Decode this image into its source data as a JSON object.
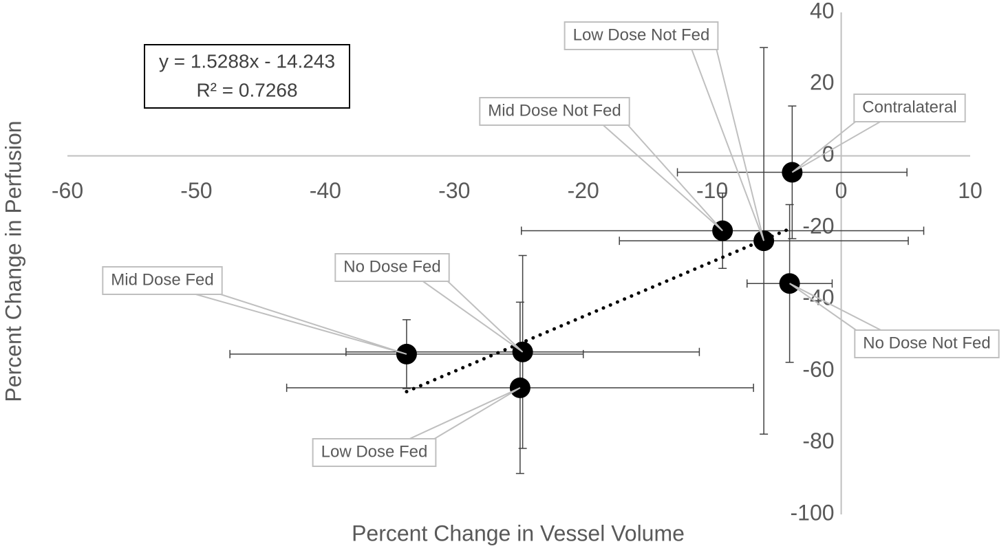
{
  "chart_data": {
    "type": "scatter",
    "x_label": "Percent Change in Vessel Volume",
    "y_label": "Percent Change in Perfusion",
    "xlim": [
      -60,
      10
    ],
    "xticks": [
      -60,
      -50,
      -40,
      -30,
      -20,
      -10,
      0,
      10
    ],
    "ylim": [
      -100,
      40
    ],
    "yticks": [
      -100,
      -80,
      -60,
      -40,
      -20,
      0,
      20,
      40
    ],
    "series": [
      {
        "color": "#000000",
        "labels": [
          "Contralateral",
          "Low Dose Not Fed",
          "Mid Dose Not Fed",
          "No Dose Not Fed",
          "Mid Dose Fed",
          "No Dose Fed",
          "Low Dose Fed"
        ],
        "x": [
          -3.8,
          -6.0,
          -9.2,
          -4.0,
          -33.7,
          -24.7,
          -24.9
        ],
        "y": [
          -4.6,
          -23.7,
          -20.9,
          -35.6,
          -55.3,
          -54.7,
          -64.7
        ],
        "xerr": [
          8.9,
          11.2,
          15.6,
          3.3,
          13.7,
          13.7,
          18.1
        ],
        "yerr": [
          18.5,
          53.9,
          10.5,
          22,
          9.6,
          26.9,
          23.9
        ]
      }
    ],
    "trendline": {
      "equation": "y = 1.5288x - 14.243",
      "r2": "R² = 0.7268",
      "slope": 1.5288,
      "intercept": -14.243,
      "style": "dotted"
    }
  }
}
